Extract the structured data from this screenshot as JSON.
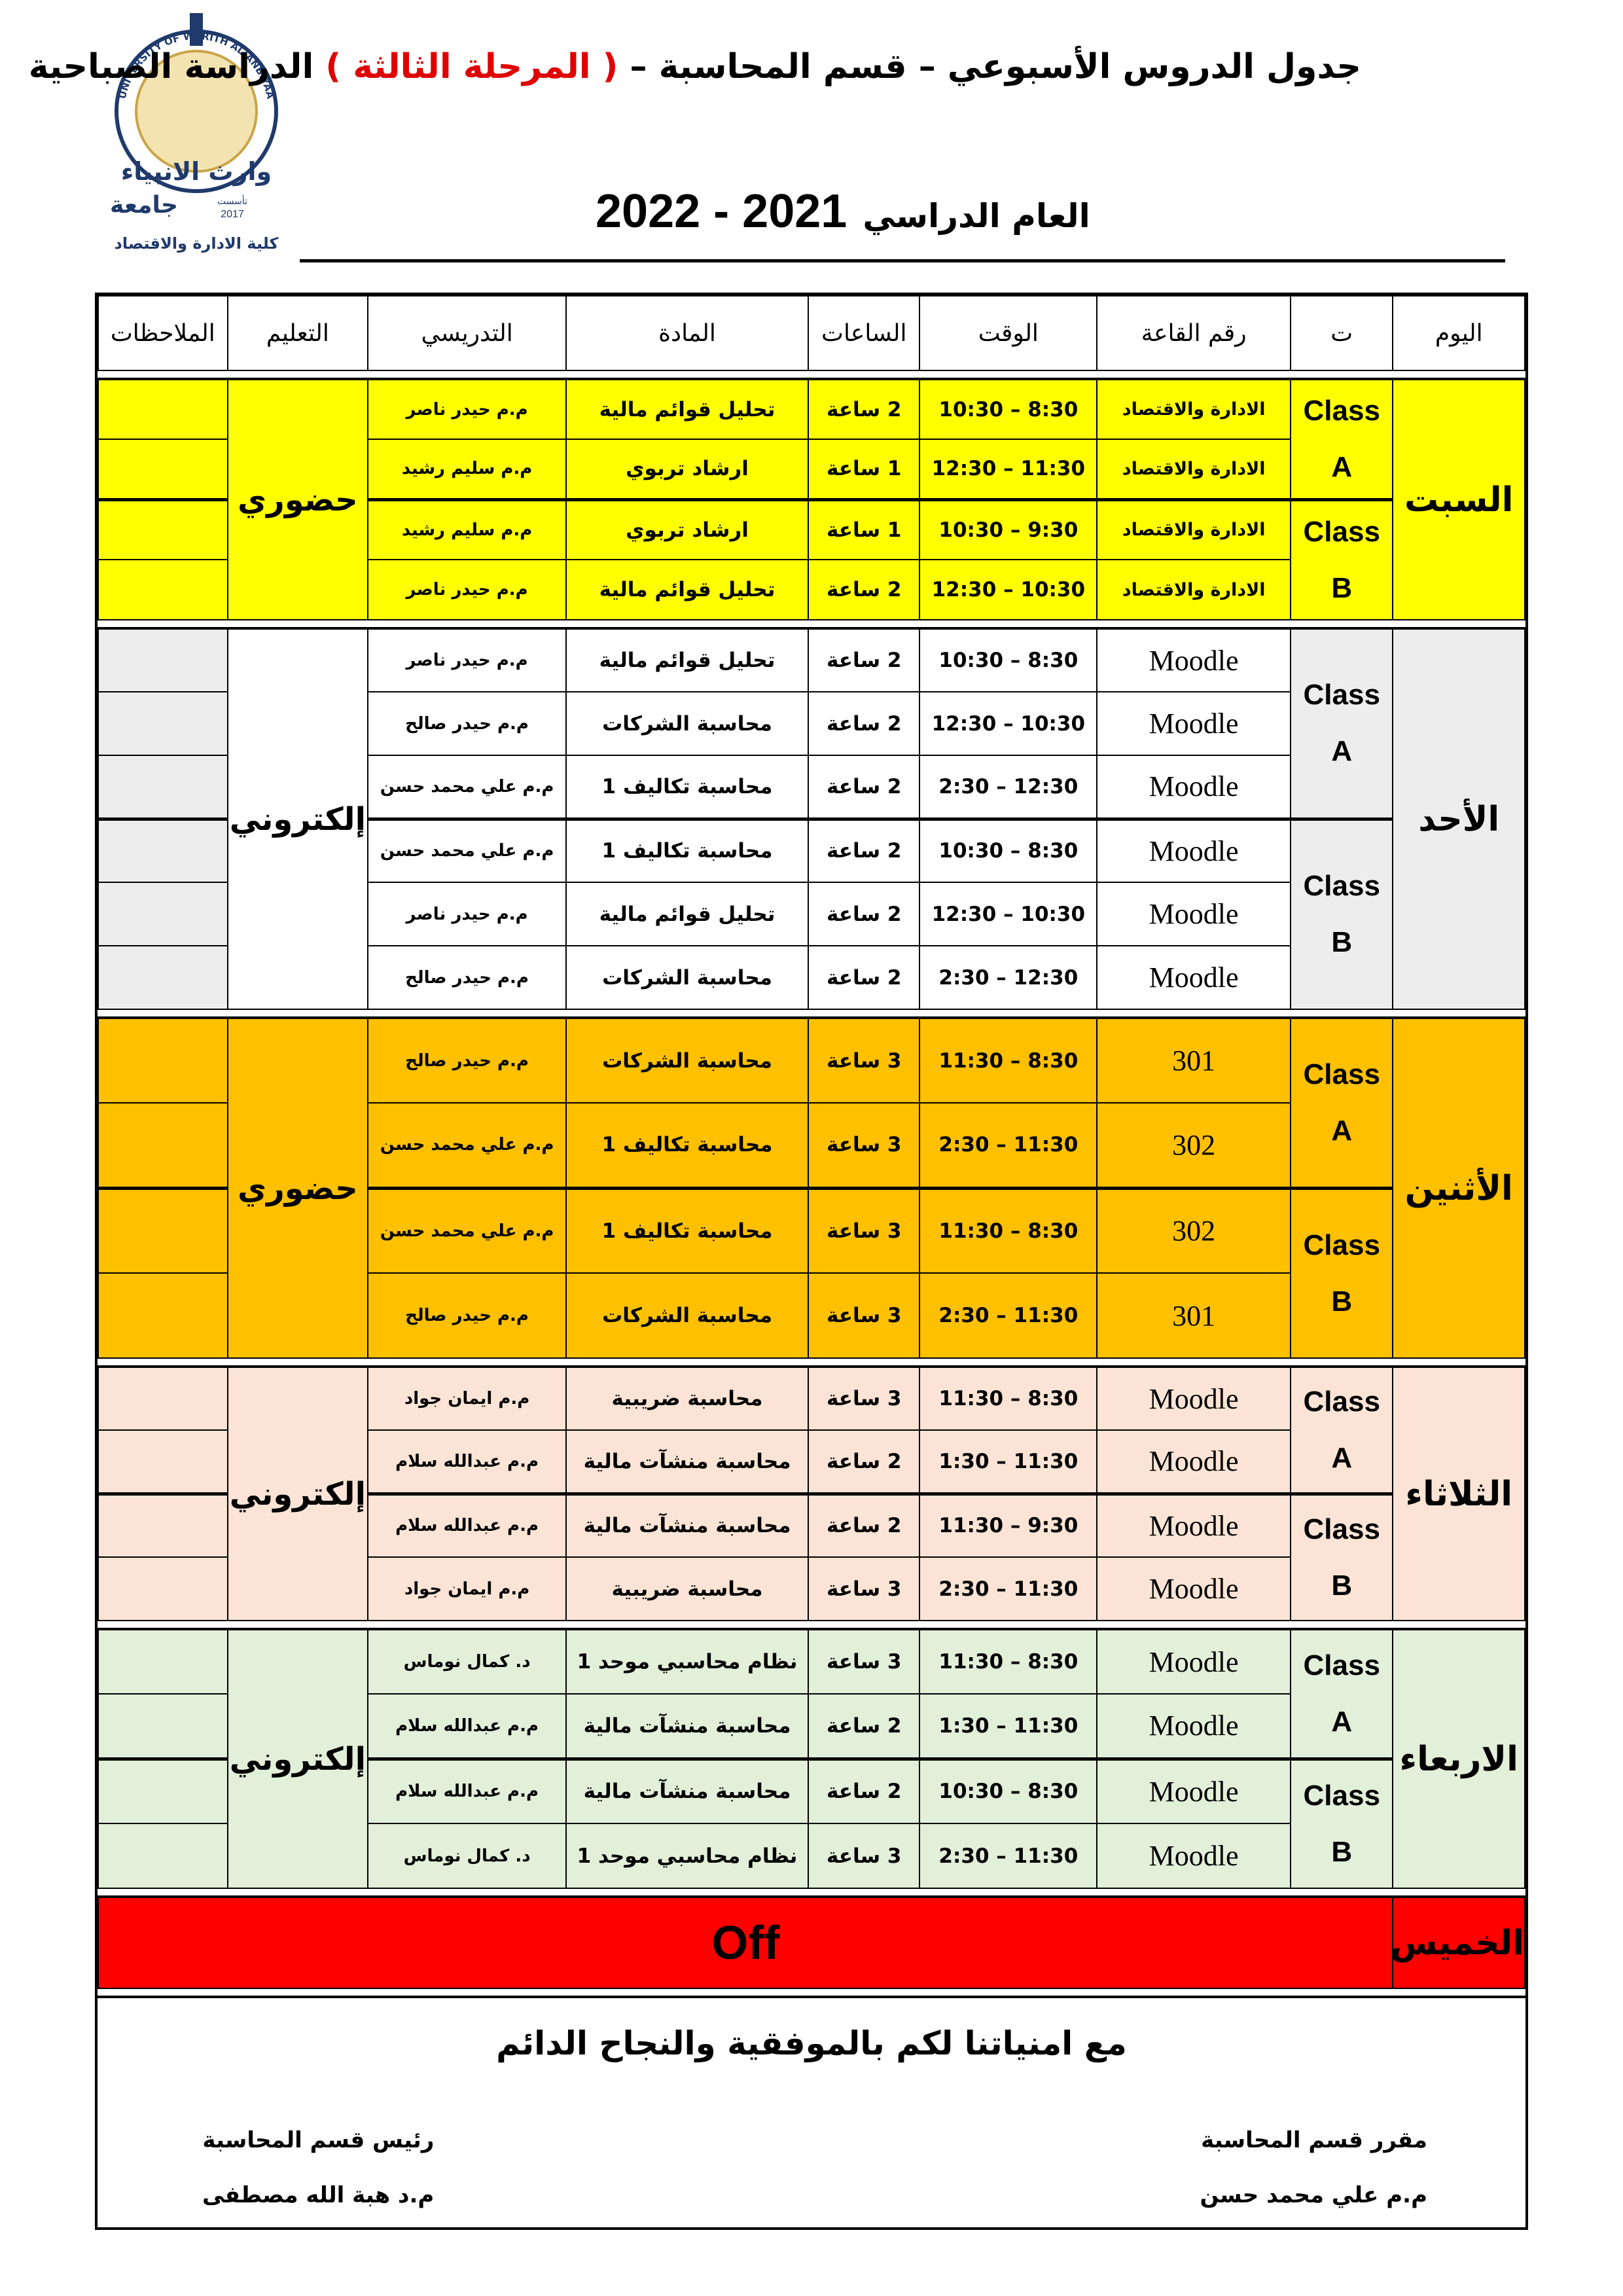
{
  "logo": {
    "arc_text": "UNIVERSITY OF WARITH AL-ANBIYAA",
    "name_top": "وارث الانبياء",
    "name_bottom": "جامعة",
    "founded": "تأسست",
    "year": "2017",
    "college": "كلية الادارة والاقتصاد"
  },
  "header": {
    "title_start": "جدول الدروس الأسبوعي – قسم المحاسبة –",
    "title_stage": "( المرحلة الثالثة )",
    "title_end": "الدراسة الصباحية",
    "year_label": "العام الدراسي",
    "year": "2021 - 2022"
  },
  "table": {
    "headers": [
      "اليوم",
      "ت",
      "رقم القاعة",
      "الوقت",
      "الساعات",
      "المادة",
      "التدريسي",
      "التعليم",
      "الملاحظات"
    ],
    "days": [
      {
        "day": "السبت",
        "mode": "حضوري",
        "color": "#ffff00",
        "groups": [
          {
            "class": "Class",
            "group": "A",
            "rows": [
              {
                "room": "الادارة والاقتصاد",
                "time": "8:30 – 10:30",
                "hours": "2 ساعة",
                "subject": "تحليل قوائم مالية",
                "teacher": "م.م حيدر ناصر"
              },
              {
                "room": "الادارة والاقتصاد",
                "time": "11:30 – 12:30",
                "hours": "1 ساعة",
                "subject": "ارشاد تربوي",
                "teacher": "م.م سليم رشيد"
              }
            ]
          },
          {
            "class": "Class",
            "group": "B",
            "rows": [
              {
                "room": "الادارة والاقتصاد",
                "time": "9:30 – 10:30",
                "hours": "1 ساعة",
                "subject": "ارشاد تربوي",
                "teacher": "م.م سليم رشيد"
              },
              {
                "room": "الادارة والاقتصاد",
                "time": "10:30 – 12:30",
                "hours": "2 ساعة",
                "subject": "تحليل قوائم مالية",
                "teacher": "م.م حيدر ناصر"
              }
            ]
          }
        ]
      },
      {
        "day": "الأحد",
        "mode": "إلكتروني",
        "color": "#ededed",
        "cell_color": "#ffffff",
        "groups": [
          {
            "class": "Class",
            "group": "A",
            "rows": [
              {
                "room": "Moodle",
                "time": "8:30 – 10:30",
                "hours": "2 ساعة",
                "subject": "تحليل قوائم مالية",
                "teacher": "م.م حيدر ناصر"
              },
              {
                "room": "Moodle",
                "time": "10:30 – 12:30",
                "hours": "2 ساعة",
                "subject": "محاسبة الشركات",
                "teacher": "م.م حيدر صالح"
              },
              {
                "room": "Moodle",
                "time": "12:30 – 2:30",
                "hours": "2 ساعة",
                "subject": "محاسبة تكاليف 1",
                "teacher": "م.م علي محمد حسن"
              }
            ]
          },
          {
            "class": "Class",
            "group": "B",
            "rows": [
              {
                "room": "Moodle",
                "time": "8:30 – 10:30",
                "hours": "2 ساعة",
                "subject": "محاسبة تكاليف 1",
                "teacher": "م.م علي محمد حسن"
              },
              {
                "room": "Moodle",
                "time": "10:30 – 12:30",
                "hours": "2 ساعة",
                "subject": "تحليل قوائم مالية",
                "teacher": "م.م حيدر ناصر"
              },
              {
                "room": "Moodle",
                "time": "12:30 – 2:30",
                "hours": "2 ساعة",
                "subject": "محاسبة الشركات",
                "teacher": "م.م حيدر صالح"
              }
            ]
          }
        ]
      },
      {
        "day": "الأثنين",
        "mode": "حضوري",
        "color": "#ffc000",
        "groups": [
          {
            "class": "Class",
            "group": "A",
            "rows": [
              {
                "room": "301",
                "time": "8:30 – 11:30",
                "hours": "3 ساعة",
                "subject": "محاسبة الشركات",
                "teacher": "م.م حيدر صالح"
              },
              {
                "room": "302",
                "time": "11:30 – 2:30",
                "hours": "3 ساعة",
                "subject": "محاسبة تكاليف 1",
                "teacher": "م.م علي محمد حسن"
              }
            ]
          },
          {
            "class": "Class",
            "group": "B",
            "rows": [
              {
                "room": "302",
                "time": "8:30 – 11:30",
                "hours": "3 ساعة",
                "subject": "محاسبة تكاليف 1",
                "teacher": "م.م علي محمد حسن"
              },
              {
                "room": "301",
                "time": "11:30 – 2:30",
                "hours": "3 ساعة",
                "subject": "محاسبة الشركات",
                "teacher": "م.م حيدر صالح"
              }
            ]
          }
        ]
      },
      {
        "day": "الثلاثاء",
        "mode": "إلكتروني",
        "color": "#fbe4d5",
        "groups": [
          {
            "class": "Class",
            "group": "A",
            "rows": [
              {
                "room": "Moodle",
                "time": "8:30 – 11:30",
                "hours": "3 ساعة",
                "subject": "محاسبة ضريبية",
                "teacher": "م.م ايمان جواد"
              },
              {
                "room": "Moodle",
                "time": "11:30 – 1:30",
                "hours": "2 ساعة",
                "subject": "محاسبة منشآت مالية",
                "teacher": "م.م عبدالله سلام"
              }
            ]
          },
          {
            "class": "Class",
            "group": "B",
            "rows": [
              {
                "room": "Moodle",
                "time": "9:30 – 11:30",
                "hours": "2 ساعة",
                "subject": "محاسبة منشآت مالية",
                "teacher": "م.م عبدالله سلام"
              },
              {
                "room": "Moodle",
                "time": "11:30 – 2:30",
                "hours": "3 ساعة",
                "subject": "محاسبة ضريبية",
                "teacher": "م.م ايمان جواد"
              }
            ]
          }
        ]
      },
      {
        "day": "الاربعاء",
        "mode": "إلكتروني",
        "color": "#e2efd9",
        "groups": [
          {
            "class": "Class",
            "group": "A",
            "rows": [
              {
                "room": "Moodle",
                "time": "8:30 – 11:30",
                "hours": "3 ساعة",
                "subject": "نظام محاسبي موحد 1",
                "teacher": "د. كمال نوماس"
              },
              {
                "room": "Moodle",
                "time": "11:30 – 1:30",
                "hours": "2 ساعة",
                "subject": "محاسبة منشآت مالية",
                "teacher": "م.م عبدالله سلام"
              }
            ]
          },
          {
            "class": "Class",
            "group": "B",
            "rows": [
              {
                "room": "Moodle",
                "time": "8:30 – 10:30",
                "hours": "2 ساعة",
                "subject": "محاسبة منشآت مالية",
                "teacher": "م.م عبدالله سلام"
              },
              {
                "room": "Moodle",
                "time": "11:30 – 2:30",
                "hours": "3 ساعة",
                "subject": "نظام محاسبي موحد 1",
                "teacher": "د. كمال نوماس"
              }
            ]
          }
        ]
      },
      {
        "day": "الخميس",
        "off": "Off",
        "color": "#ff0000"
      }
    ]
  },
  "footer": {
    "wish": "مع امنياتنا لكم بالموفقية والنجاح الدائم",
    "right_title": "مقرر قسم المحاسبة",
    "right_name": "م.م علي محمد حسن",
    "left_title": "رئيس قسم المحاسبة",
    "left_name": "م.د هبة الله مصطفى"
  }
}
